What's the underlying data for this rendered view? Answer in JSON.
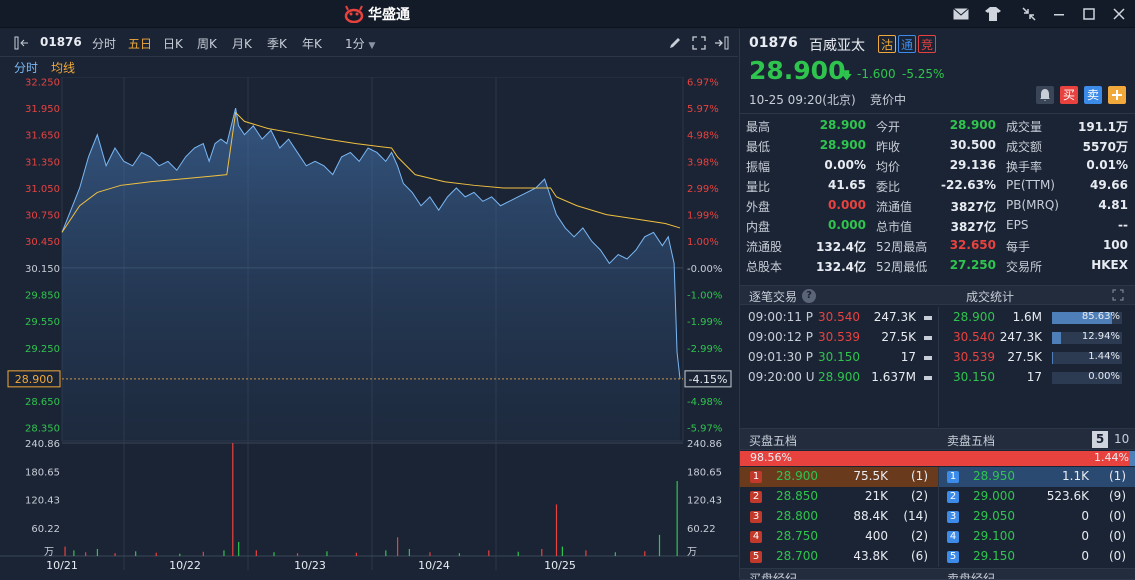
{
  "app": {
    "logo_text": "华盛通"
  },
  "toolbar": {
    "code": "01876",
    "periods": [
      "分时",
      "五日",
      "日K",
      "周K",
      "月K",
      "季K",
      "年K",
      "1分"
    ],
    "active_period": "五日"
  },
  "subbar": {
    "items": [
      "分时",
      "均线"
    ]
  },
  "chart_data": {
    "type": "line",
    "x_labels": [
      "10/21",
      "10/22",
      "10/23",
      "10/24",
      "10/25"
    ],
    "price_ticks_left": [
      "32.250",
      "31.950",
      "31.650",
      "31.350",
      "31.050",
      "30.750",
      "30.450",
      "30.150",
      "29.850",
      "29.550",
      "29.250",
      "28.950",
      "28.650",
      "28.350"
    ],
    "pct_ticks_right": [
      "6.97%",
      "5.97%",
      "4.98%",
      "3.98%",
      "2.99%",
      "1.99%",
      "1.00%",
      "-0.00%",
      "-1.00%",
      "-1.99%",
      "-2.99%",
      "-3.98%",
      "-4.98%",
      "-5.97%"
    ],
    "current_price_label": "28.900",
    "current_pct_label": "-4.15%",
    "volume_ticks": [
      "240.86",
      "180.65",
      "120.43",
      "60.22"
    ],
    "volume_unit": "万",
    "ylim": [
      28.2,
      32.3
    ],
    "prev_close": 30.15,
    "price_series": [
      {
        "x": 0,
        "y": 30.55
      },
      {
        "x": 3,
        "y": 30.8
      },
      {
        "x": 6,
        "y": 31.05
      },
      {
        "x": 9,
        "y": 31.4
      },
      {
        "x": 12,
        "y": 31.65
      },
      {
        "x": 15,
        "y": 31.3
      },
      {
        "x": 18,
        "y": 31.5
      },
      {
        "x": 21,
        "y": 31.35
      },
      {
        "x": 24,
        "y": 31.3
      },
      {
        "x": 27,
        "y": 31.45
      },
      {
        "x": 30,
        "y": 31.4
      },
      {
        "x": 33,
        "y": 31.3
      },
      {
        "x": 36,
        "y": 31.35
      },
      {
        "x": 39,
        "y": 31.25
      },
      {
        "x": 42,
        "y": 31.4
      },
      {
        "x": 45,
        "y": 31.5
      },
      {
        "x": 48,
        "y": 31.55
      },
      {
        "x": 50,
        "y": 31.35
      },
      {
        "x": 52,
        "y": 31.55
      },
      {
        "x": 54,
        "y": 31.6
      },
      {
        "x": 56,
        "y": 31.55
      },
      {
        "x": 59,
        "y": 31.95
      },
      {
        "x": 60,
        "y": 31.75
      },
      {
        "x": 62,
        "y": 31.65
      },
      {
        "x": 65,
        "y": 31.75
      },
      {
        "x": 68,
        "y": 31.6
      },
      {
        "x": 71,
        "y": 31.7
      },
      {
        "x": 74,
        "y": 31.5
      },
      {
        "x": 77,
        "y": 31.6
      },
      {
        "x": 80,
        "y": 31.45
      },
      {
        "x": 83,
        "y": 31.3
      },
      {
        "x": 86,
        "y": 31.35
      },
      {
        "x": 89,
        "y": 31.3
      },
      {
        "x": 92,
        "y": 31.2
      },
      {
        "x": 95,
        "y": 31.4
      },
      {
        "x": 98,
        "y": 31.45
      },
      {
        "x": 101,
        "y": 31.35
      },
      {
        "x": 104,
        "y": 31.5
      },
      {
        "x": 107,
        "y": 31.45
      },
      {
        "x": 110,
        "y": 31.35
      },
      {
        "x": 112,
        "y": 31.45
      },
      {
        "x": 114,
        "y": 31.3
      },
      {
        "x": 116,
        "y": 31.1
      },
      {
        "x": 119,
        "y": 31.0
      },
      {
        "x": 122,
        "y": 30.85
      },
      {
        "x": 125,
        "y": 30.95
      },
      {
        "x": 128,
        "y": 30.8
      },
      {
        "x": 131,
        "y": 30.95
      },
      {
        "x": 134,
        "y": 31.05
      },
      {
        "x": 137,
        "y": 30.95
      },
      {
        "x": 140,
        "y": 31.0
      },
      {
        "x": 143,
        "y": 30.9
      },
      {
        "x": 146,
        "y": 30.95
      },
      {
        "x": 149,
        "y": 30.85
      },
      {
        "x": 152,
        "y": 30.9
      },
      {
        "x": 155,
        "y": 30.95
      },
      {
        "x": 158,
        "y": 31.0
      },
      {
        "x": 161,
        "y": 31.05
      },
      {
        "x": 164,
        "y": 31.15
      },
      {
        "x": 166,
        "y": 30.95
      },
      {
        "x": 168,
        "y": 30.75
      },
      {
        "x": 171,
        "y": 30.6
      },
      {
        "x": 174,
        "y": 30.5
      },
      {
        "x": 177,
        "y": 30.6
      },
      {
        "x": 180,
        "y": 30.45
      },
      {
        "x": 183,
        "y": 30.35
      },
      {
        "x": 186,
        "y": 30.2
      },
      {
        "x": 189,
        "y": 30.3
      },
      {
        "x": 192,
        "y": 30.25
      },
      {
        "x": 195,
        "y": 30.35
      },
      {
        "x": 198,
        "y": 30.5
      },
      {
        "x": 201,
        "y": 30.55
      },
      {
        "x": 204,
        "y": 30.4
      },
      {
        "x": 206,
        "y": 30.5
      },
      {
        "x": 208,
        "y": 30.2
      },
      {
        "x": 209,
        "y": 29.2
      },
      {
        "x": 210,
        "y": 28.9
      }
    ],
    "avg_series": [
      {
        "x": 0,
        "y": 30.55
      },
      {
        "x": 6,
        "y": 30.85
      },
      {
        "x": 12,
        "y": 31.0
      },
      {
        "x": 20,
        "y": 31.08
      },
      {
        "x": 30,
        "y": 31.12
      },
      {
        "x": 40,
        "y": 31.15
      },
      {
        "x": 50,
        "y": 31.18
      },
      {
        "x": 56,
        "y": 31.2
      },
      {
        "x": 59,
        "y": 31.9
      },
      {
        "x": 62,
        "y": 31.8
      },
      {
        "x": 70,
        "y": 31.72
      },
      {
        "x": 80,
        "y": 31.66
      },
      {
        "x": 90,
        "y": 31.6
      },
      {
        "x": 100,
        "y": 31.55
      },
      {
        "x": 112,
        "y": 31.5
      },
      {
        "x": 114,
        "y": 31.4
      },
      {
        "x": 120,
        "y": 31.2
      },
      {
        "x": 130,
        "y": 31.12
      },
      {
        "x": 140,
        "y": 31.08
      },
      {
        "x": 150,
        "y": 31.05
      },
      {
        "x": 160,
        "y": 31.05
      },
      {
        "x": 166,
        "y": 31.05
      },
      {
        "x": 168,
        "y": 30.95
      },
      {
        "x": 175,
        "y": 30.85
      },
      {
        "x": 185,
        "y": 30.75
      },
      {
        "x": 195,
        "y": 30.7
      },
      {
        "x": 205,
        "y": 30.65
      },
      {
        "x": 210,
        "y": 30.6
      }
    ],
    "volume_series": [
      {
        "x": 1,
        "v": 20,
        "c": "r"
      },
      {
        "x": 4,
        "v": 12,
        "c": "g"
      },
      {
        "x": 8,
        "v": 8,
        "c": "r"
      },
      {
        "x": 12,
        "v": 15,
        "c": "g"
      },
      {
        "x": 18,
        "v": 6,
        "c": "r"
      },
      {
        "x": 25,
        "v": 10,
        "c": "g"
      },
      {
        "x": 32,
        "v": 7,
        "c": "r"
      },
      {
        "x": 40,
        "v": 5,
        "c": "g"
      },
      {
        "x": 48,
        "v": 9,
        "c": "r"
      },
      {
        "x": 55,
        "v": 12,
        "c": "g"
      },
      {
        "x": 58,
        "v": 245,
        "c": "r"
      },
      {
        "x": 60,
        "v": 30,
        "c": "g"
      },
      {
        "x": 66,
        "v": 12,
        "c": "r"
      },
      {
        "x": 72,
        "v": 8,
        "c": "g"
      },
      {
        "x": 80,
        "v": 6,
        "c": "r"
      },
      {
        "x": 90,
        "v": 10,
        "c": "g"
      },
      {
        "x": 100,
        "v": 7,
        "c": "r"
      },
      {
        "x": 110,
        "v": 12,
        "c": "g"
      },
      {
        "x": 114,
        "v": 40,
        "c": "r"
      },
      {
        "x": 118,
        "v": 15,
        "c": "g"
      },
      {
        "x": 125,
        "v": 8,
        "c": "r"
      },
      {
        "x": 135,
        "v": 6,
        "c": "g"
      },
      {
        "x": 145,
        "v": 12,
        "c": "r"
      },
      {
        "x": 155,
        "v": 9,
        "c": "g"
      },
      {
        "x": 163,
        "v": 15,
        "c": "r"
      },
      {
        "x": 168,
        "v": 110,
        "c": "r"
      },
      {
        "x": 170,
        "v": 20,
        "c": "g"
      },
      {
        "x": 178,
        "v": 12,
        "c": "r"
      },
      {
        "x": 188,
        "v": 8,
        "c": "g"
      },
      {
        "x": 198,
        "v": 10,
        "c": "r"
      },
      {
        "x": 203,
        "v": 45,
        "c": "g"
      },
      {
        "x": 209,
        "v": 160,
        "c": "g"
      }
    ]
  },
  "quote": {
    "code": "01876",
    "name": "百威亚太",
    "tags": [
      "沽",
      "通",
      "竞"
    ],
    "price": "28.900",
    "change": "-1.600",
    "change_pct": "-5.25%",
    "time": "10-25 09:20(北京)",
    "status": "竞价中",
    "buy_label": "买",
    "sell_label": "卖"
  },
  "stats": [
    [
      {
        "k": "最高",
        "v": "28.900",
        "c": "green"
      },
      {
        "k": "今开",
        "v": "28.900",
        "c": "green"
      },
      {
        "k": "成交量",
        "v": "191.1万",
        "c": "white"
      }
    ],
    [
      {
        "k": "最低",
        "v": "28.900",
        "c": "green"
      },
      {
        "k": "昨收",
        "v": "30.500",
        "c": "white"
      },
      {
        "k": "成交额",
        "v": "5570万",
        "c": "white"
      }
    ],
    [
      {
        "k": "振幅",
        "v": "0.00%",
        "c": "white"
      },
      {
        "k": "均价",
        "v": "29.136",
        "c": "white"
      },
      {
        "k": "换手率",
        "v": "0.01%",
        "c": "white"
      }
    ],
    [
      {
        "k": "量比",
        "v": "41.65",
        "c": "white"
      },
      {
        "k": "委比",
        "v": "-22.63%",
        "c": "white"
      },
      {
        "k": "PE(TTM)",
        "v": "49.66",
        "c": "white"
      }
    ],
    [
      {
        "k": "外盘",
        "v": "0.000",
        "c": "red"
      },
      {
        "k": "流通值",
        "v": "3827亿",
        "c": "white"
      },
      {
        "k": "PB(MRQ)",
        "v": "4.81",
        "c": "white"
      }
    ],
    [
      {
        "k": "内盘",
        "v": "0.000",
        "c": "green"
      },
      {
        "k": "总市值",
        "v": "3827亿",
        "c": "white"
      },
      {
        "k": "EPS",
        "v": "--",
        "c": "white"
      }
    ],
    [
      {
        "k": "流通股",
        "v": "132.4亿",
        "c": "white"
      },
      {
        "k": "52周最高",
        "v": "32.650",
        "c": "red"
      },
      {
        "k": "每手",
        "v": "100",
        "c": "white"
      }
    ],
    [
      {
        "k": "总股本",
        "v": "132.4亿",
        "c": "white"
      },
      {
        "k": "52周最低",
        "v": "27.250",
        "c": "green"
      },
      {
        "k": "交易所",
        "v": "HKEX",
        "c": "white"
      }
    ]
  ],
  "trades": {
    "title": "逐笔交易",
    "stats_title": "成交统计",
    "rows": [
      {
        "time": "09:00:11",
        "flag": "P",
        "price": "30.540",
        "pc": "red",
        "vol": "247.3K"
      },
      {
        "time": "09:00:12",
        "flag": "P",
        "price": "30.539",
        "pc": "red",
        "vol": "27.5K"
      },
      {
        "time": "09:01:30",
        "flag": "P",
        "price": "30.150",
        "pc": "green",
        "vol": "17"
      },
      {
        "time": "09:20:00",
        "flag": "U",
        "price": "28.900",
        "pc": "green",
        "vol": "1.637M"
      }
    ],
    "stats": [
      {
        "price": "28.900",
        "pc": "green",
        "vol": "1.6M",
        "pct": "85.63%",
        "frac": 0.8563
      },
      {
        "price": "30.540",
        "pc": "red",
        "vol": "247.3K",
        "pct": "12.94%",
        "frac": 0.1294
      },
      {
        "price": "30.539",
        "pc": "red",
        "vol": "27.5K",
        "pct": "1.44%",
        "frac": 0.0144
      },
      {
        "price": "30.150",
        "pc": "green",
        "vol": "17",
        "pct": "0.00%",
        "frac": 0.0
      }
    ]
  },
  "book": {
    "bid_title": "买盘五档",
    "ask_title": "卖盘五档",
    "depth_options": [
      "5",
      "10"
    ],
    "bid_pct": "98.56%",
    "ask_pct": "1.44%",
    "bid_frac": 0.9856,
    "bids": [
      {
        "lvl": "1",
        "price": "28.900",
        "vol": "75.5K",
        "cnt": "(1)"
      },
      {
        "lvl": "2",
        "price": "28.850",
        "vol": "21K",
        "cnt": "(2)"
      },
      {
        "lvl": "3",
        "price": "28.800",
        "vol": "88.4K",
        "cnt": "(14)"
      },
      {
        "lvl": "4",
        "price": "28.750",
        "vol": "400",
        "cnt": "(2)"
      },
      {
        "lvl": "5",
        "price": "28.700",
        "vol": "43.8K",
        "cnt": "(6)"
      }
    ],
    "asks": [
      {
        "lvl": "1",
        "price": "28.950",
        "vol": "1.1K",
        "cnt": "(1)"
      },
      {
        "lvl": "2",
        "price": "29.000",
        "vol": "523.6K",
        "cnt": "(9)"
      },
      {
        "lvl": "3",
        "price": "29.050",
        "vol": "0",
        "cnt": "(0)"
      },
      {
        "lvl": "4",
        "price": "29.100",
        "vol": "0",
        "cnt": "(0)"
      },
      {
        "lvl": "5",
        "price": "29.150",
        "vol": "0",
        "cnt": "(0)"
      }
    ],
    "bid_broker_title": "买盘经纪",
    "ask_broker_title": "卖盘经纪"
  },
  "colors": {
    "up": "#e8423f",
    "down": "#2fc44e",
    "accent": "#f0a93a",
    "price_line": "#7ab8f5",
    "avg_line": "#f0c040"
  }
}
